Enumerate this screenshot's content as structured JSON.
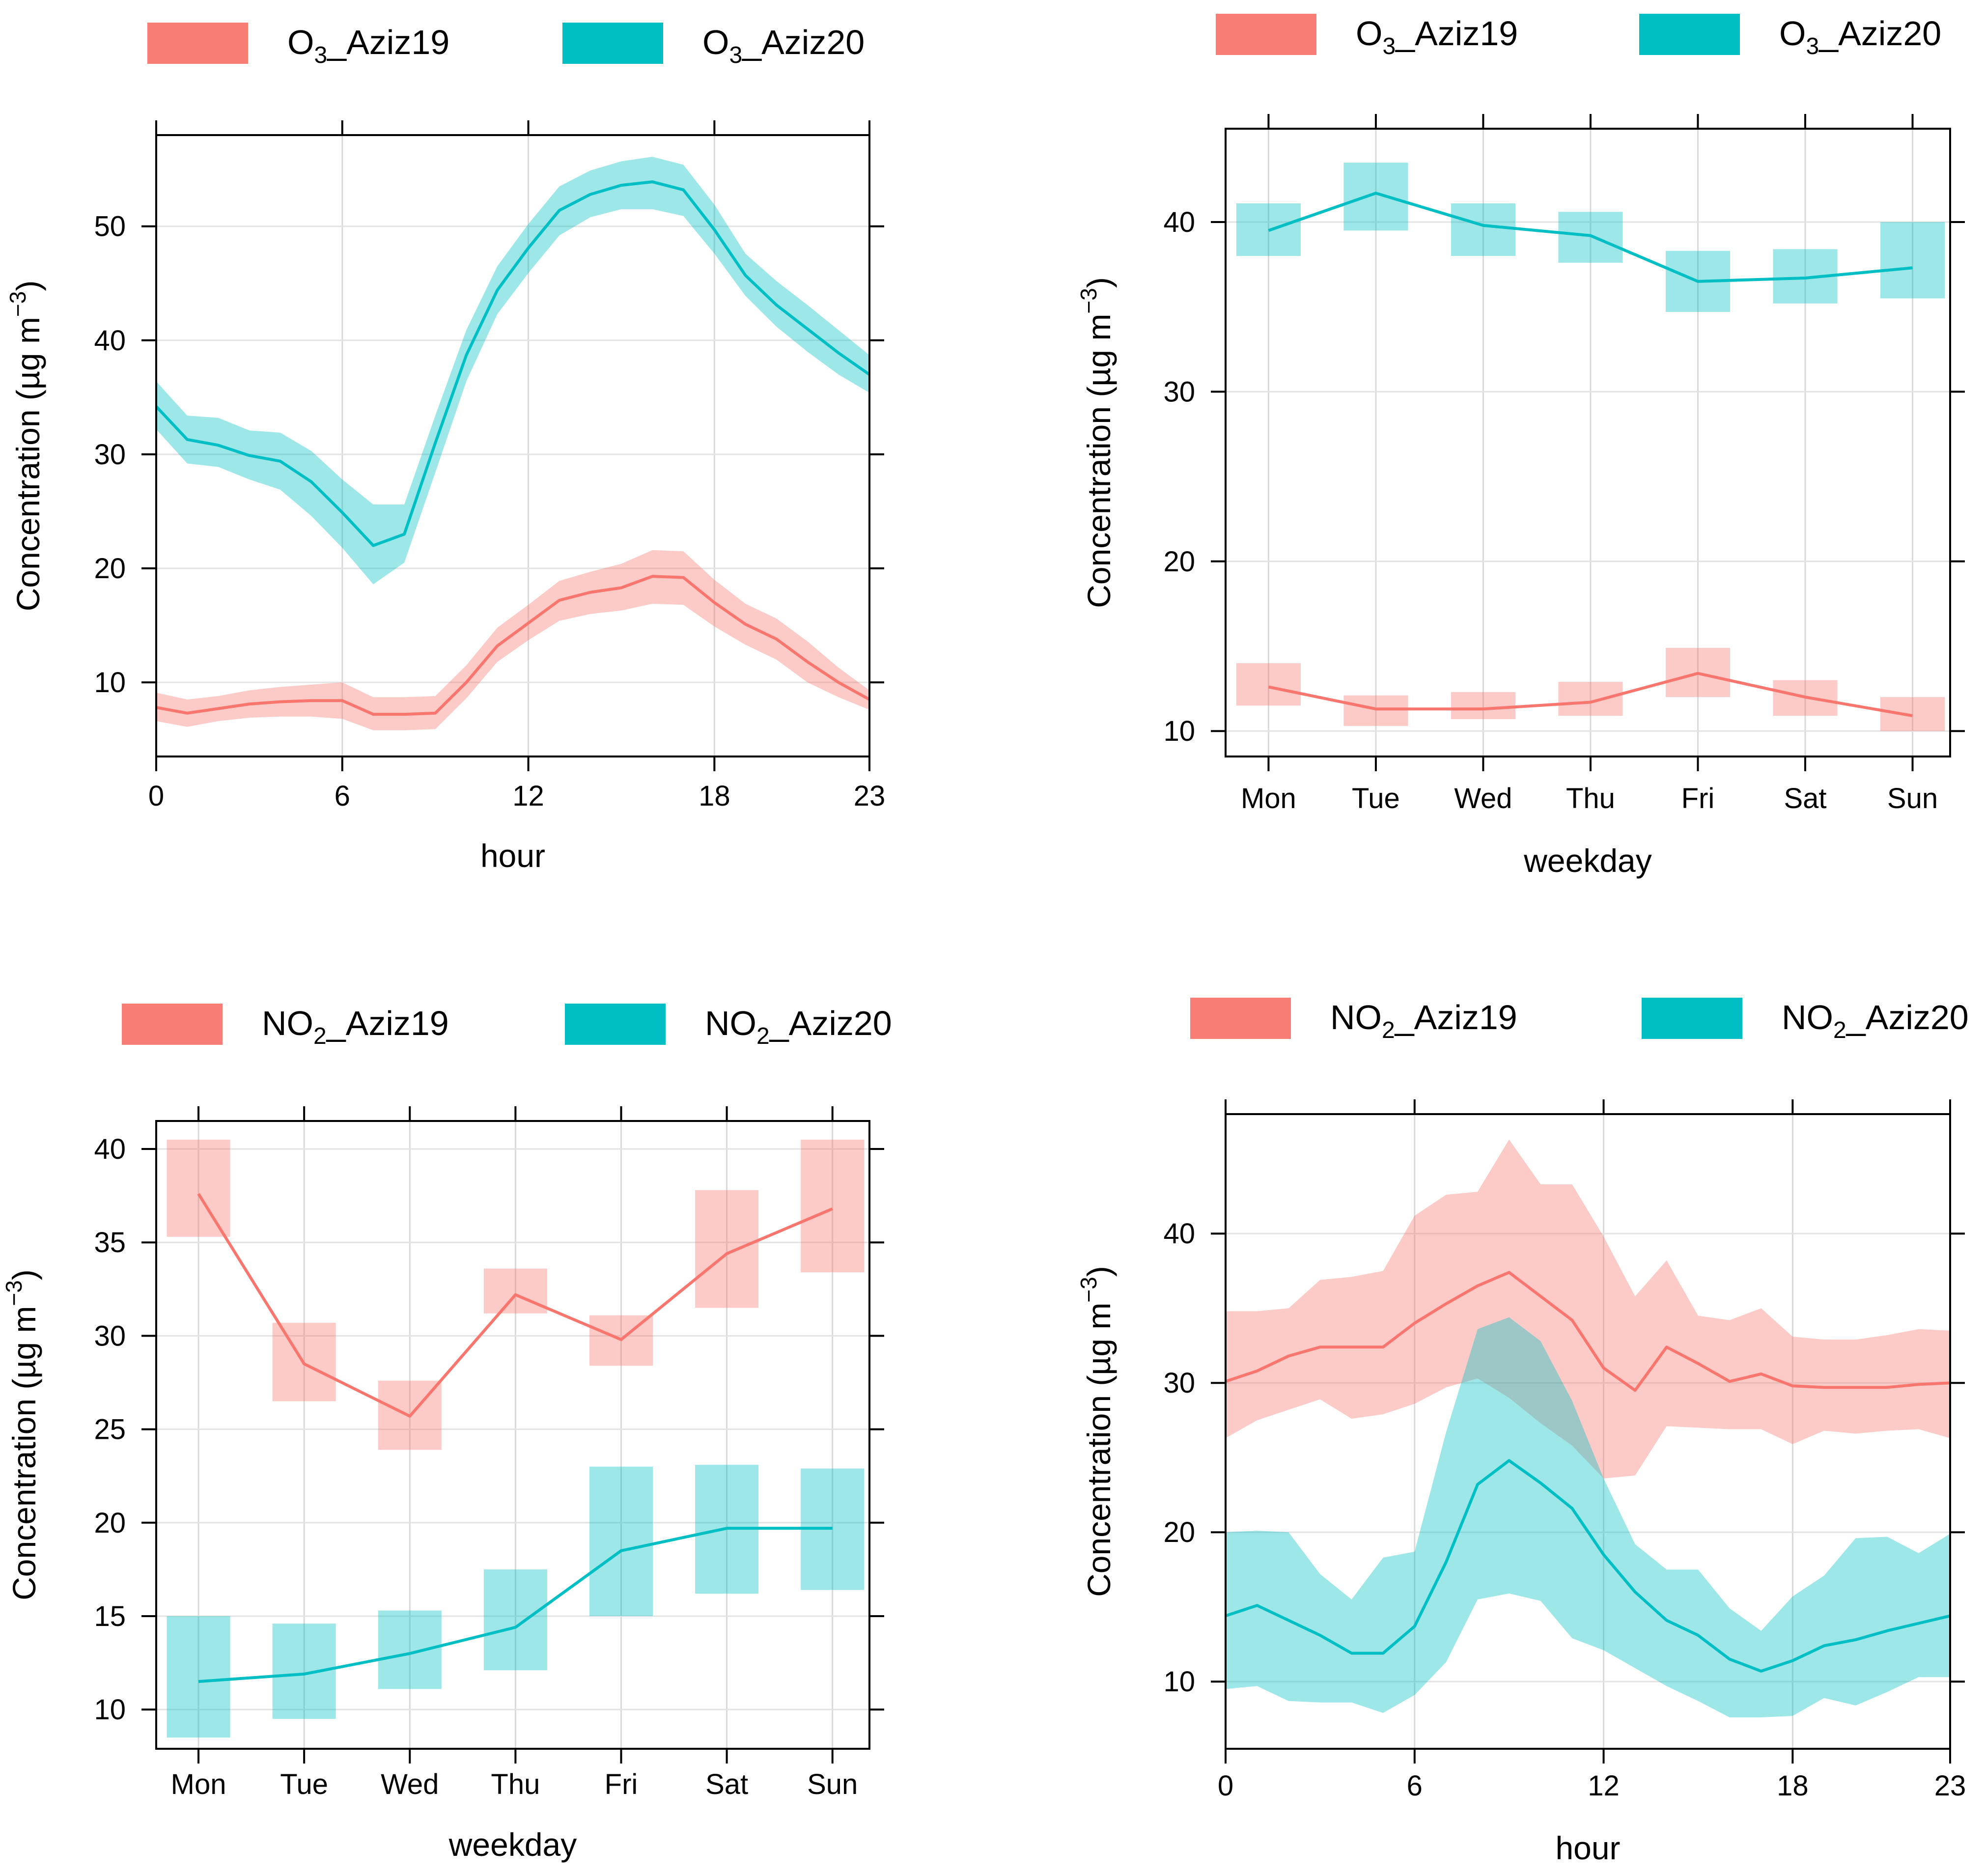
{
  "colors": {
    "red_line": "#F8766D",
    "red_band": "#F8766D",
    "cyan_line": "#00BFC4",
    "cyan_band": "#00BFC4",
    "grid": "#e6e6e6",
    "axis": "#000000"
  },
  "chart_data": [
    {
      "id": "o3-hour",
      "type": "line",
      "title": "",
      "xlabel": "hour",
      "ylabel": "Concentration (µg m⁻³)",
      "ylabel_base": "Concentration (",
      "ylabel_unit": "µg m",
      "ylabel_exp": "−3",
      "ylabel_close": ")",
      "legend": [
        {
          "label_prefix": "O",
          "label_sub": "3",
          "label_suffix": "_Aziz19",
          "color": "red"
        },
        {
          "label_prefix": "O",
          "label_sub": "3",
          "label_suffix": "_Aziz20",
          "color": "cyan"
        }
      ],
      "xlim": [
        0,
        23
      ],
      "ylim": [
        3.5,
        58
      ],
      "xticks": [
        0,
        6,
        12,
        18,
        23
      ],
      "xtick_labels": [
        "0",
        "6",
        "12",
        "18",
        "23"
      ],
      "yticks": [
        10,
        20,
        30,
        40,
        50
      ],
      "ytick_labels": [
        "10",
        "20",
        "30",
        "40",
        "50"
      ],
      "band_mode": "continuous",
      "x": [
        0,
        1,
        2,
        3,
        4,
        5,
        6,
        7,
        8,
        9,
        10,
        11,
        12,
        13,
        14,
        15,
        16,
        17,
        18,
        19,
        20,
        21,
        22,
        23
      ],
      "series": [
        {
          "name": "O3_Aziz19",
          "color": "red",
          "values": [
            7.8,
            7.3,
            7.7,
            8.1,
            8.3,
            8.4,
            8.4,
            7.2,
            7.2,
            7.3,
            10.0,
            13.2,
            15.2,
            17.2,
            17.9,
            18.3,
            19.3,
            19.2,
            17.0,
            15.1,
            13.8,
            11.8,
            10.0,
            8.5
          ],
          "lower": [
            6.6,
            6.1,
            6.6,
            6.9,
            7.0,
            7.0,
            6.8,
            5.8,
            5.8,
            5.9,
            8.6,
            11.8,
            13.7,
            15.4,
            16.0,
            16.3,
            16.9,
            16.8,
            14.9,
            13.3,
            12.0,
            10.0,
            8.7,
            7.6
          ],
          "upper": [
            9.1,
            8.5,
            8.8,
            9.3,
            9.6,
            9.8,
            10.0,
            8.7,
            8.7,
            8.8,
            11.5,
            14.8,
            16.8,
            18.9,
            19.7,
            20.4,
            21.6,
            21.5,
            19.0,
            16.9,
            15.6,
            13.6,
            11.3,
            9.3
          ]
        },
        {
          "name": "O3_Aziz20",
          "color": "cyan",
          "values": [
            34.2,
            31.3,
            30.8,
            29.9,
            29.4,
            27.6,
            24.9,
            22.0,
            23.0,
            31.0,
            38.7,
            44.4,
            48.1,
            51.4,
            52.8,
            53.6,
            53.9,
            53.2,
            49.7,
            45.7,
            43.1,
            41.0,
            38.9,
            37.0
          ],
          "lower": [
            32.2,
            29.2,
            28.9,
            27.8,
            26.9,
            24.6,
            21.8,
            18.6,
            20.5,
            28.4,
            36.4,
            42.3,
            45.9,
            49.2,
            50.8,
            51.5,
            51.5,
            50.9,
            47.6,
            43.9,
            41.2,
            39.0,
            37.0,
            35.4
          ],
          "upper": [
            36.4,
            33.4,
            33.2,
            32.1,
            31.9,
            30.3,
            27.8,
            25.6,
            25.6,
            33.4,
            40.9,
            46.5,
            50.2,
            53.5,
            54.9,
            55.7,
            56.1,
            55.4,
            51.9,
            47.6,
            45.2,
            43.1,
            40.9,
            38.7
          ]
        }
      ]
    },
    {
      "id": "o3-weekday",
      "type": "line",
      "title": "",
      "xlabel": "weekday",
      "ylabel": "Concentration (µg m⁻³)",
      "ylabel_base": "Concentration (",
      "ylabel_unit": "µg m",
      "ylabel_exp": "−3",
      "ylabel_close": ")",
      "legend": [
        {
          "label_prefix": "O",
          "label_sub": "3",
          "label_suffix": "_Aziz19",
          "color": "red"
        },
        {
          "label_prefix": "O",
          "label_sub": "3",
          "label_suffix": "_Aziz20",
          "color": "cyan"
        }
      ],
      "xlim": [
        0.6,
        7.35
      ],
      "ylim": [
        8.5,
        45.5
      ],
      "xticks": [
        1,
        2,
        3,
        4,
        5,
        6,
        7
      ],
      "xtick_labels": [
        "Mon",
        "Tue",
        "Wed",
        "Thu",
        "Fri",
        "Sat",
        "Sun"
      ],
      "yticks": [
        10,
        20,
        30,
        40
      ],
      "ytick_labels": [
        "10",
        "20",
        "30",
        "40"
      ],
      "band_mode": "boxes",
      "x": [
        1,
        2,
        3,
        4,
        5,
        6,
        7
      ],
      "series": [
        {
          "name": "O3_Aziz19",
          "color": "red",
          "values": [
            12.6,
            11.3,
            11.3,
            11.7,
            13.4,
            12.0,
            10.9
          ],
          "lower": [
            11.5,
            10.3,
            10.7,
            10.9,
            12.0,
            10.9,
            10.0
          ],
          "upper": [
            14.0,
            12.1,
            12.3,
            12.9,
            14.9,
            13.0,
            12.0
          ]
        },
        {
          "name": "O3_Aziz20",
          "color": "cyan",
          "values": [
            39.5,
            41.7,
            39.8,
            39.2,
            36.5,
            36.7,
            37.3
          ],
          "lower": [
            38.0,
            39.5,
            38.0,
            37.6,
            34.7,
            35.2,
            35.5
          ],
          "upper": [
            41.1,
            43.5,
            41.1,
            40.6,
            38.3,
            38.4,
            40.0
          ]
        }
      ]
    },
    {
      "id": "no2-weekday",
      "type": "line",
      "title": "",
      "xlabel": "weekday",
      "ylabel": "Concentration (µg m⁻³)",
      "ylabel_base": "Concentration (",
      "ylabel_unit": "µg m",
      "ylabel_exp": "−3",
      "ylabel_close": ")",
      "legend": [
        {
          "label_prefix": "NO",
          "label_sub": "2",
          "label_suffix": "_Aziz19",
          "color": "red"
        },
        {
          "label_prefix": "NO",
          "label_sub": "2",
          "label_suffix": "_Aziz20",
          "color": "cyan"
        }
      ],
      "xlim": [
        0.6,
        7.35
      ],
      "ylim": [
        7.9,
        41.5
      ],
      "xticks": [
        1,
        2,
        3,
        4,
        5,
        6,
        7
      ],
      "xtick_labels": [
        "Mon",
        "Tue",
        "Wed",
        "Thu",
        "Fri",
        "Sat",
        "Sun"
      ],
      "yticks": [
        10,
        15,
        20,
        25,
        30,
        35,
        40
      ],
      "ytick_labels": [
        "10",
        "15",
        "20",
        "25",
        "30",
        "35",
        "40"
      ],
      "band_mode": "boxes",
      "x": [
        1,
        2,
        3,
        4,
        5,
        6,
        7
      ],
      "series": [
        {
          "name": "NO2_Aziz19",
          "color": "red",
          "values": [
            37.6,
            28.5,
            25.7,
            32.2,
            29.8,
            34.4,
            36.8
          ],
          "lower": [
            35.3,
            26.5,
            23.9,
            31.2,
            28.4,
            31.5,
            33.4
          ],
          "upper": [
            40.5,
            30.7,
            27.6,
            33.6,
            31.1,
            37.8,
            40.5
          ]
        },
        {
          "name": "NO2_Aziz20",
          "color": "cyan",
          "values": [
            11.5,
            11.9,
            13.0,
            14.4,
            18.5,
            19.7,
            19.7
          ],
          "lower": [
            8.5,
            9.5,
            11.1,
            12.1,
            15.0,
            16.2,
            16.4
          ],
          "upper": [
            15.0,
            14.6,
            15.3,
            17.5,
            23.0,
            23.1,
            22.9
          ]
        }
      ]
    },
    {
      "id": "no2-hour",
      "type": "line",
      "title": "",
      "xlabel": "hour",
      "ylabel": "Concentration (µg m⁻³)",
      "ylabel_base": "Concentration (",
      "ylabel_unit": "µg m",
      "ylabel_exp": "−3",
      "ylabel_close": ")",
      "legend": [
        {
          "label_prefix": "NO",
          "label_sub": "2",
          "label_suffix": "_Aziz19",
          "color": "red"
        },
        {
          "label_prefix": "NO",
          "label_sub": "2",
          "label_suffix": "_Aziz20",
          "color": "cyan"
        }
      ],
      "xlim": [
        0,
        23
      ],
      "ylim": [
        5.5,
        48
      ],
      "xticks": [
        0,
        6,
        12,
        18,
        23
      ],
      "xtick_labels": [
        "0",
        "6",
        "12",
        "18",
        "23"
      ],
      "yticks": [
        10,
        20,
        30,
        40
      ],
      "ytick_labels": [
        "10",
        "20",
        "30",
        "40"
      ],
      "band_mode": "continuous",
      "x": [
        0,
        1,
        2,
        3,
        4,
        5,
        6,
        7,
        8,
        9,
        10,
        11,
        12,
        13,
        14,
        15,
        16,
        17,
        18,
        19,
        20,
        21,
        22,
        23
      ],
      "series": [
        {
          "name": "NO2_Aziz19",
          "color": "red",
          "values": [
            30.1,
            30.8,
            31.8,
            32.4,
            32.4,
            32.4,
            34.0,
            35.3,
            36.5,
            37.4,
            35.8,
            34.2,
            31.0,
            29.5,
            32.4,
            31.3,
            30.1,
            30.6,
            29.8,
            29.7,
            29.7,
            29.7,
            29.9,
            30.0
          ],
          "lower": [
            26.3,
            27.5,
            28.2,
            28.9,
            27.6,
            27.9,
            28.6,
            29.7,
            30.3,
            29.0,
            27.3,
            25.8,
            23.6,
            23.8,
            27.1,
            27.0,
            26.9,
            26.9,
            25.9,
            26.8,
            26.6,
            26.8,
            26.9,
            26.3
          ],
          "upper": [
            34.8,
            34.8,
            35.0,
            36.9,
            37.1,
            37.5,
            41.2,
            42.6,
            42.8,
            46.3,
            43.3,
            43.3,
            39.8,
            35.8,
            38.2,
            34.5,
            34.2,
            35.0,
            33.1,
            32.9,
            32.9,
            33.2,
            33.6,
            33.5
          ]
        },
        {
          "name": "NO2_Aziz20",
          "color": "cyan",
          "values": [
            14.4,
            15.1,
            14.1,
            13.1,
            11.9,
            11.9,
            13.7,
            18.0,
            23.2,
            24.8,
            23.3,
            21.6,
            18.5,
            16.0,
            14.1,
            13.1,
            11.5,
            10.7,
            11.4,
            12.4,
            12.8,
            13.4,
            13.9,
            14.4
          ],
          "lower": [
            9.5,
            9.7,
            8.7,
            8.6,
            8.6,
            7.9,
            9.1,
            11.3,
            15.5,
            15.9,
            15.4,
            12.9,
            12.1,
            10.9,
            9.7,
            8.7,
            7.6,
            7.6,
            7.7,
            8.9,
            8.4,
            9.3,
            10.3,
            10.3
          ],
          "upper": [
            20.0,
            20.1,
            20.0,
            17.2,
            15.5,
            18.3,
            18.7,
            26.7,
            33.6,
            34.4,
            32.8,
            28.8,
            23.6,
            19.2,
            17.5,
            17.5,
            14.9,
            13.4,
            15.7,
            17.1,
            19.6,
            19.7,
            18.6,
            19.9
          ]
        }
      ]
    }
  ]
}
